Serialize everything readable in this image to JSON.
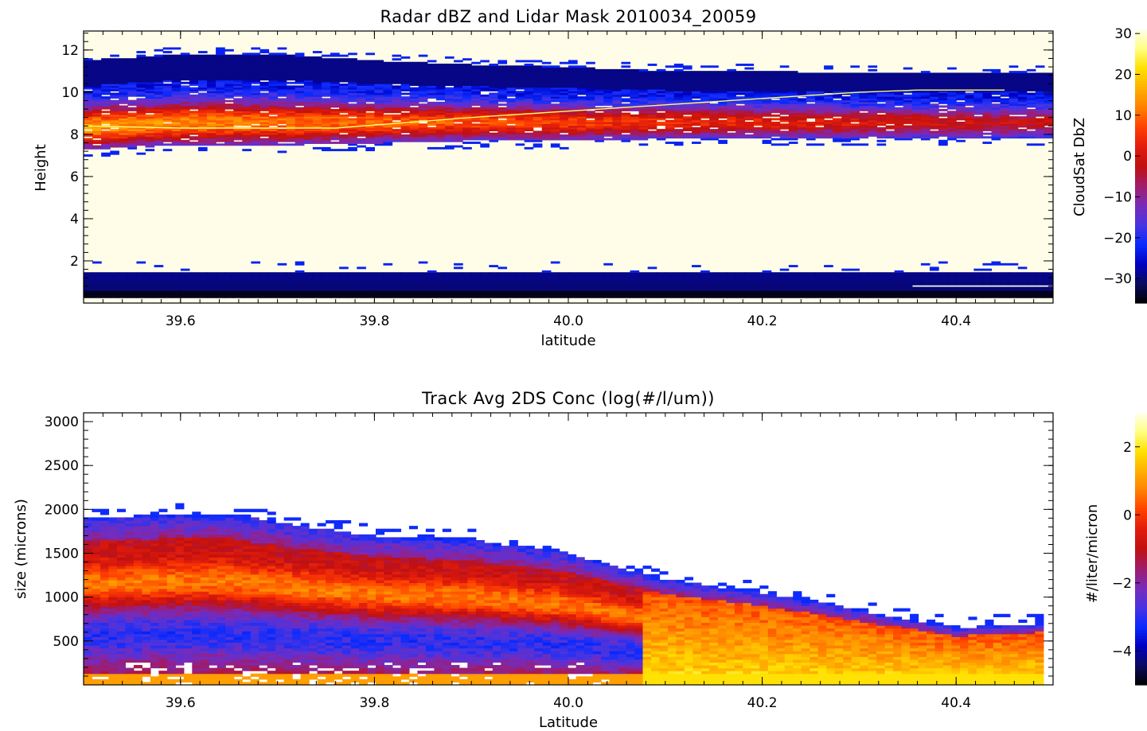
{
  "chart_data": [
    {
      "type": "heatmap",
      "title": "Radar dBZ and Lidar Mask 2010034_20059",
      "xlabel": "latitude",
      "ylabel": "Height",
      "x_ticks": [
        "39.6",
        "39.8",
        "40.0",
        "40.2",
        "40.4"
      ],
      "y_ticks": [
        "2",
        "4",
        "6",
        "8",
        "10",
        "12"
      ],
      "xlim": [
        39.5,
        40.5
      ],
      "ylim": [
        0.0,
        12.9
      ],
      "cloud_layer_km": {
        "latitude": [
          39.5,
          39.6,
          39.7,
          39.8,
          39.9,
          40.0,
          40.1,
          40.2,
          40.3,
          40.4,
          40.5
        ],
        "base": [
          7.3,
          7.5,
          7.5,
          7.6,
          7.7,
          7.7,
          7.8,
          7.8,
          7.8,
          7.8,
          7.8
        ],
        "top": [
          11.5,
          11.8,
          11.8,
          11.5,
          11.3,
          11.2,
          11.0,
          11.0,
          10.9,
          10.9,
          10.9
        ]
      },
      "line_series": {
        "color": "#ffff66",
        "latitude": [
          39.5,
          39.6,
          39.7,
          39.76,
          39.9,
          40.0,
          40.1,
          40.2,
          40.3,
          40.36,
          40.45
        ],
        "height": [
          8.4,
          8.3,
          8.3,
          8.3,
          8.8,
          9.1,
          9.4,
          9.7,
          10.0,
          10.1,
          10.1
        ]
      },
      "colorbar": {
        "label": "CloudSat DbZ",
        "ticks": [
          "30",
          "20",
          "10",
          "0",
          "−10",
          "−20",
          "−30"
        ],
        "range": [
          -36,
          31
        ],
        "colormap": [
          "#000000",
          "#0a0a60",
          "#0000c0",
          "#0a2aff",
          "#4a34e0",
          "#7a2ab8",
          "#a01c6a",
          "#c01010",
          "#e01c0c",
          "#ff4000",
          "#ff8000",
          "#ffb000",
          "#ffe000",
          "#ffff80",
          "#ffffee"
        ]
      }
    },
    {
      "type": "heatmap",
      "title": "Track Avg 2DS Conc (log(#/l/um))",
      "xlabel": "Latitude",
      "ylabel": "size (microns)",
      "x_ticks": [
        "39.6",
        "39.8",
        "40.0",
        "40.2",
        "40.4"
      ],
      "y_ticks": [
        "500",
        "1000",
        "1500",
        "2000",
        "2500",
        "3000"
      ],
      "xlim": [
        39.5,
        40.5
      ],
      "ylim": [
        0,
        3100
      ],
      "max_size_microns": {
        "latitude": [
          39.5,
          39.6,
          39.65,
          39.7,
          39.8,
          39.9,
          40.0,
          40.1,
          40.2,
          40.3,
          40.4,
          40.49
        ],
        "size": [
          1900,
          1950,
          1950,
          1850,
          1700,
          1650,
          1500,
          1200,
          1050,
          850,
          650,
          700
        ]
      },
      "colorbar": {
        "label": "#/liter/micron",
        "ticks": [
          "2",
          "0",
          "−2",
          "−4"
        ],
        "range": [
          -5,
          3
        ],
        "colormap": [
          "#000000",
          "#0a0a60",
          "#0000c0",
          "#0a2aff",
          "#4a34e0",
          "#7a2ab8",
          "#a01c6a",
          "#c01010",
          "#e01c0c",
          "#ff4000",
          "#ff8000",
          "#ffb000",
          "#ffe000",
          "#ffff80",
          "#ffffee"
        ]
      }
    }
  ]
}
